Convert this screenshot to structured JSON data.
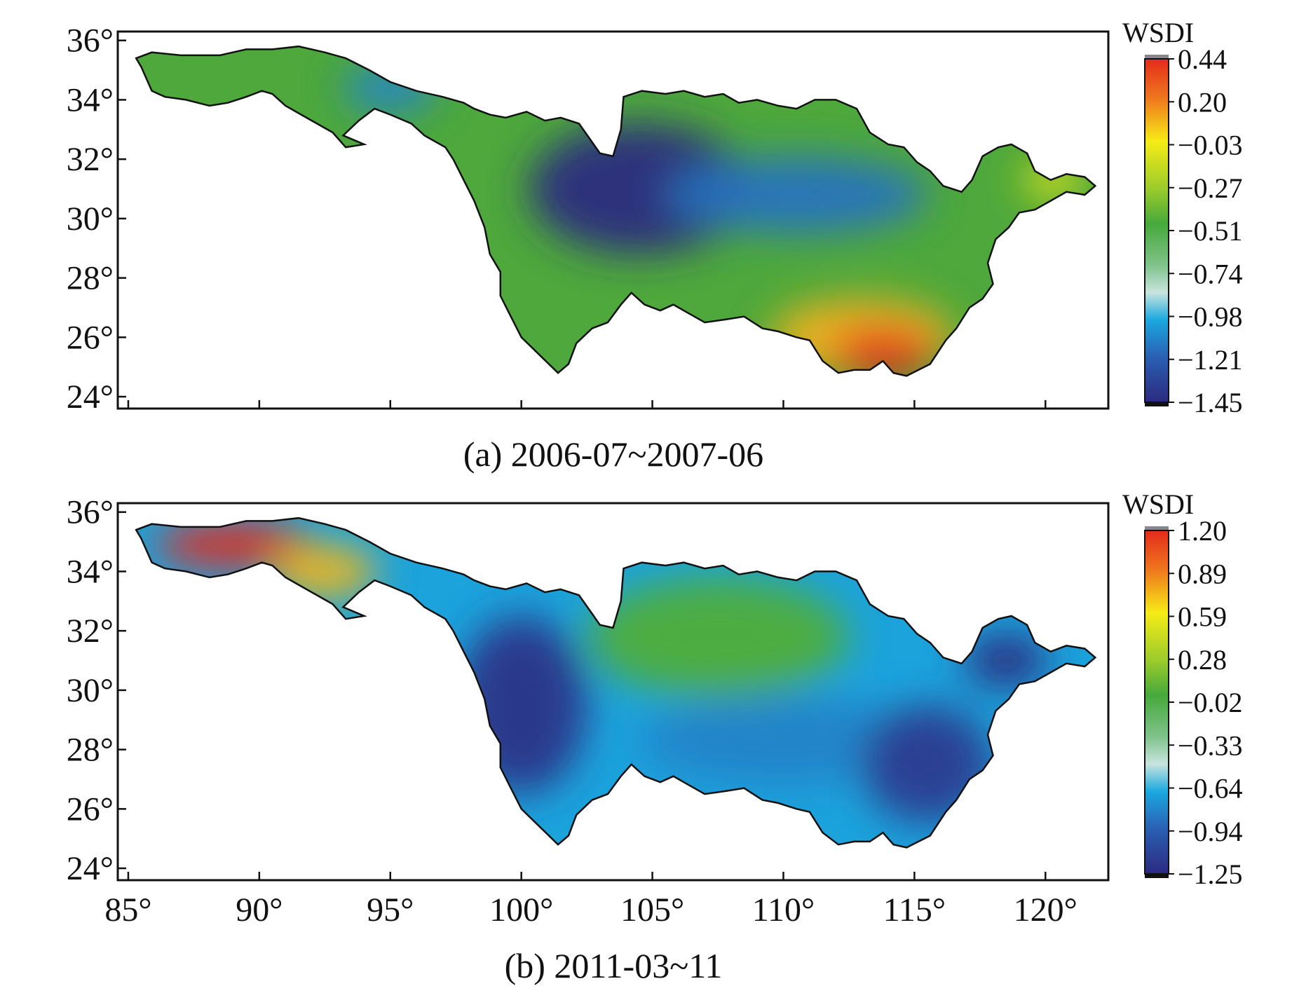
{
  "figure": {
    "panels": [
      {
        "id": "a",
        "caption": "(a) 2006-07~2007-06",
        "colorbar": {
          "title": "WSDI",
          "ticks": [
            "0.44",
            "0.20",
            "−0.03",
            "−0.27",
            "−0.51",
            "−0.74",
            "−0.98",
            "−1.21",
            "−1.45"
          ]
        },
        "regions": [
          {
            "cx": 95.0,
            "cy": 34.4,
            "rx": 1.8,
            "ry": 0.8,
            "value": -1.1
          },
          {
            "cx": 104.5,
            "cy": 31.0,
            "rx": 4.2,
            "ry": 2.2,
            "value": -1.45
          },
          {
            "cx": 110.5,
            "cy": 30.8,
            "rx": 5.0,
            "ry": 1.3,
            "value": -1.15
          },
          {
            "cx": 113.0,
            "cy": 26.0,
            "rx": 3.5,
            "ry": 1.3,
            "value": 0.1
          },
          {
            "cx": 113.8,
            "cy": 25.5,
            "rx": 2.0,
            "ry": 0.8,
            "value": 0.44
          },
          {
            "cx": 120.3,
            "cy": 31.3,
            "rx": 1.2,
            "ry": 0.6,
            "value": -0.05
          }
        ]
      },
      {
        "id": "b",
        "caption": "(b) 2011-03~11",
        "colorbar": {
          "title": "WSDI",
          "ticks": [
            "1.20",
            "0.89",
            "0.59",
            "0.28",
            "−0.02",
            "−0.33",
            "−0.64",
            "−0.94",
            "−1.25"
          ]
        },
        "regions": [
          {
            "cx": 89.0,
            "cy": 34.9,
            "rx": 3.0,
            "ry": 0.8,
            "value": 1.2
          },
          {
            "cx": 92.5,
            "cy": 34.0,
            "rx": 2.0,
            "ry": 0.9,
            "value": 0.75
          },
          {
            "cx": 107.5,
            "cy": 31.8,
            "rx": 5.0,
            "ry": 2.0,
            "value": 0.05
          },
          {
            "cx": 100.0,
            "cy": 29.5,
            "rx": 2.5,
            "ry": 3.0,
            "value": -1.2
          },
          {
            "cx": 110.0,
            "cy": 28.3,
            "rx": 5.5,
            "ry": 1.5,
            "value": -0.8
          },
          {
            "cx": 115.5,
            "cy": 27.5,
            "rx": 2.5,
            "ry": 2.0,
            "value": -1.15
          },
          {
            "cx": 118.5,
            "cy": 31.0,
            "rx": 1.6,
            "ry": 0.9,
            "value": -1.25
          }
        ]
      }
    ],
    "axes": {
      "x_ticks": [
        85,
        90,
        95,
        100,
        105,
        110,
        115,
        120
      ],
      "x_tick_labels": [
        "85°",
        "90°",
        "95°",
        "100°",
        "105°",
        "110°",
        "115°",
        "120°"
      ],
      "y_ticks": [
        24,
        26,
        28,
        30,
        32,
        34,
        36
      ],
      "y_tick_labels": [
        "24°",
        "26°",
        "28°",
        "30°",
        "32°",
        "34°",
        "36°"
      ],
      "lon_range": [
        84.6,
        122.4
      ],
      "lat_range": [
        23.6,
        36.3
      ]
    },
    "basin_outline_lonlat": [
      [
        85.3,
        35.4
      ],
      [
        85.9,
        35.6
      ],
      [
        87.0,
        35.5
      ],
      [
        88.5,
        35.5
      ],
      [
        89.5,
        35.7
      ],
      [
        90.5,
        35.7
      ],
      [
        91.5,
        35.8
      ],
      [
        92.5,
        35.6
      ],
      [
        93.3,
        35.4
      ],
      [
        94.2,
        35.0
      ],
      [
        95.0,
        34.6
      ],
      [
        96.0,
        34.3
      ],
      [
        97.0,
        34.1
      ],
      [
        97.8,
        33.9
      ],
      [
        98.2,
        33.7
      ],
      [
        98.8,
        33.5
      ],
      [
        99.4,
        33.4
      ],
      [
        100.2,
        33.6
      ],
      [
        100.9,
        33.3
      ],
      [
        101.5,
        33.4
      ],
      [
        102.2,
        33.2
      ],
      [
        102.6,
        32.7
      ],
      [
        103.0,
        32.2
      ],
      [
        103.5,
        32.1
      ],
      [
        103.8,
        33.0
      ],
      [
        103.9,
        34.1
      ],
      [
        104.6,
        34.3
      ],
      [
        105.5,
        34.2
      ],
      [
        106.2,
        34.3
      ],
      [
        107.0,
        34.1
      ],
      [
        107.7,
        34.2
      ],
      [
        108.3,
        33.9
      ],
      [
        109.0,
        34.0
      ],
      [
        109.8,
        33.8
      ],
      [
        110.5,
        33.7
      ],
      [
        111.2,
        34.0
      ],
      [
        112.0,
        34.0
      ],
      [
        112.8,
        33.7
      ],
      [
        113.3,
        32.9
      ],
      [
        114.0,
        32.5
      ],
      [
        114.6,
        32.4
      ],
      [
        115.1,
        31.9
      ],
      [
        115.6,
        31.6
      ],
      [
        116.1,
        31.1
      ],
      [
        116.8,
        30.9
      ],
      [
        117.2,
        31.3
      ],
      [
        117.6,
        32.1
      ],
      [
        118.2,
        32.4
      ],
      [
        118.7,
        32.5
      ],
      [
        119.3,
        32.2
      ],
      [
        119.6,
        31.6
      ],
      [
        120.2,
        31.3
      ],
      [
        120.8,
        31.5
      ],
      [
        121.5,
        31.4
      ],
      [
        121.9,
        31.1
      ],
      [
        121.5,
        30.8
      ],
      [
        120.8,
        30.9
      ],
      [
        120.2,
        30.6
      ],
      [
        119.6,
        30.3
      ],
      [
        119.0,
        30.2
      ],
      [
        118.6,
        29.7
      ],
      [
        118.1,
        29.3
      ],
      [
        117.8,
        28.5
      ],
      [
        118.0,
        27.8
      ],
      [
        117.6,
        27.3
      ],
      [
        117.1,
        27.0
      ],
      [
        116.6,
        26.3
      ],
      [
        116.2,
        25.9
      ],
      [
        115.6,
        25.1
      ],
      [
        114.7,
        24.7
      ],
      [
        114.2,
        24.8
      ],
      [
        113.8,
        25.2
      ],
      [
        113.3,
        24.9
      ],
      [
        112.7,
        24.9
      ],
      [
        112.1,
        24.8
      ],
      [
        111.5,
        25.2
      ],
      [
        111.0,
        25.9
      ],
      [
        110.5,
        26.0
      ],
      [
        109.8,
        26.2
      ],
      [
        109.2,
        26.3
      ],
      [
        108.5,
        26.7
      ],
      [
        107.8,
        26.6
      ],
      [
        107.0,
        26.5
      ],
      [
        106.4,
        26.8
      ],
      [
        105.8,
        27.1
      ],
      [
        105.3,
        26.9
      ],
      [
        104.7,
        27.1
      ],
      [
        104.2,
        27.5
      ],
      [
        103.8,
        27.1
      ],
      [
        103.3,
        26.5
      ],
      [
        102.7,
        26.3
      ],
      [
        102.1,
        25.8
      ],
      [
        101.8,
        25.1
      ],
      [
        101.4,
        24.8
      ],
      [
        100.7,
        25.4
      ],
      [
        100.0,
        26.0
      ],
      [
        99.6,
        26.7
      ],
      [
        99.2,
        27.4
      ],
      [
        99.2,
        28.2
      ],
      [
        98.8,
        28.8
      ],
      [
        98.6,
        29.7
      ],
      [
        98.2,
        30.6
      ],
      [
        97.8,
        31.3
      ],
      [
        97.4,
        32.0
      ],
      [
        97.1,
        32.4
      ],
      [
        96.3,
        32.8
      ],
      [
        95.8,
        33.2
      ],
      [
        95.0,
        33.5
      ],
      [
        94.4,
        33.7
      ],
      [
        93.8,
        33.3
      ],
      [
        93.2,
        32.8
      ],
      [
        94.0,
        32.5
      ],
      [
        93.3,
        32.4
      ],
      [
        92.8,
        32.9
      ],
      [
        91.8,
        33.4
      ],
      [
        91.0,
        33.8
      ],
      [
        90.5,
        34.2
      ],
      [
        90.1,
        34.3
      ],
      [
        89.5,
        34.1
      ],
      [
        88.8,
        33.9
      ],
      [
        88.1,
        33.8
      ],
      [
        87.2,
        34.0
      ],
      [
        86.4,
        34.1
      ],
      [
        85.9,
        34.3
      ],
      [
        85.7,
        34.7
      ],
      [
        85.5,
        35.1
      ]
    ]
  }
}
